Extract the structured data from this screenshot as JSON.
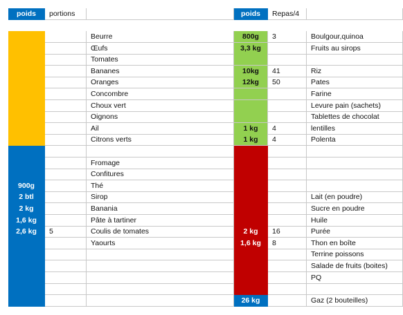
{
  "header": [
    "poids",
    "portions",
    null,
    "poids",
    "Repas/4",
    null
  ],
  "rows": [
    [
      null,
      null,
      "Beurre",
      "800g",
      "3",
      "Boulgour,quinoa"
    ],
    [
      null,
      null,
      "Œufs",
      "3,3 kg",
      null,
      "Fruits au sirops"
    ],
    [
      null,
      null,
      "Tomates",
      null,
      null,
      null
    ],
    [
      null,
      null,
      "Bananes",
      "10kg",
      "41",
      "Riz"
    ],
    [
      null,
      null,
      "Oranges",
      "12kg",
      "50",
      "Pates"
    ],
    [
      null,
      null,
      "Concombre",
      null,
      null,
      "Farine"
    ],
    [
      null,
      null,
      "Choux vert",
      null,
      null,
      "Levure pain (sachets)"
    ],
    [
      null,
      null,
      "Oignons",
      null,
      null,
      "Tablettes de chocolat"
    ],
    [
      null,
      null,
      "Ail",
      "1 kg",
      "4",
      "lentilles"
    ],
    [
      null,
      null,
      "Citrons verts",
      "1 kg",
      "4",
      "Polenta"
    ],
    [
      null,
      null,
      null,
      null,
      null,
      null
    ],
    [
      null,
      null,
      "Fromage",
      null,
      null,
      null
    ],
    [
      null,
      null,
      "Confitures",
      null,
      null,
      null
    ],
    [
      "900g",
      null,
      "Thé",
      null,
      null,
      null
    ],
    [
      "2 btl",
      null,
      "Sirop",
      null,
      null,
      "Lait (en poudre)"
    ],
    [
      "2 kg",
      null,
      "Banania",
      null,
      null,
      "Sucre en poudre"
    ],
    [
      "1,6 kg",
      null,
      "Pâte à tartiner",
      null,
      null,
      "Huile"
    ],
    [
      "2,6 kg",
      "5",
      "Coulis de tomates",
      "2 kg",
      "16",
      "Purée"
    ],
    [
      null,
      null,
      "Yaourts",
      "1,6 kg",
      "8",
      "Thon en boîte"
    ],
    [
      null,
      null,
      null,
      null,
      null,
      "Terrine poissons"
    ],
    [
      null,
      null,
      null,
      null,
      null,
      "Salade de fruits (boites)"
    ],
    [
      null,
      null,
      null,
      null,
      null,
      "PQ"
    ],
    [
      null,
      null,
      null,
      null,
      null,
      null
    ],
    [
      null,
      null,
      null,
      "26 kg",
      null,
      "Gaz (2 bouteilles)"
    ]
  ]
}
